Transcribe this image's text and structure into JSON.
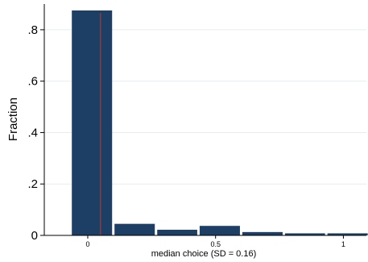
{
  "chart_data": {
    "type": "bar",
    "title": "",
    "xlabel": "median choice (SD = 0.16)",
    "ylabel": "Fraction",
    "xlim": [
      -0.17,
      1.09
    ],
    "ylim": [
      0,
      0.9
    ],
    "grid": true,
    "bin_width": 0.167,
    "bins": [
      {
        "x_start": -0.067,
        "x_end": 0.1,
        "value": 0.875
      },
      {
        "x_start": 0.1,
        "x_end": 0.267,
        "value": 0.045
      },
      {
        "x_start": 0.267,
        "x_end": 0.433,
        "value": 0.022
      },
      {
        "x_start": 0.433,
        "x_end": 0.6,
        "value": 0.037
      },
      {
        "x_start": 0.6,
        "x_end": 0.767,
        "value": 0.013
      },
      {
        "x_start": 0.767,
        "x_end": 0.933,
        "value": 0.008
      },
      {
        "x_start": 0.933,
        "x_end": 1.1,
        "value": 0.008
      }
    ],
    "reference_line_x": 0.05,
    "x_ticks": [
      {
        "value": 0,
        "label": "0"
      },
      {
        "value": 0.5,
        "label": "0.5"
      },
      {
        "value": 1,
        "label": "1"
      }
    ],
    "y_ticks": [
      {
        "value": 0,
        "label": "0"
      },
      {
        "value": 0.2,
        "label": ".2"
      },
      {
        "value": 0.4,
        "label": ".4"
      },
      {
        "value": 0.6,
        "label": ".6"
      },
      {
        "value": 0.8,
        "label": ".8"
      }
    ],
    "colors": {
      "bar": "#1d3f66",
      "reference_line": "#c0392b",
      "grid": "#e8ecf0",
      "axis": "#000000"
    }
  }
}
